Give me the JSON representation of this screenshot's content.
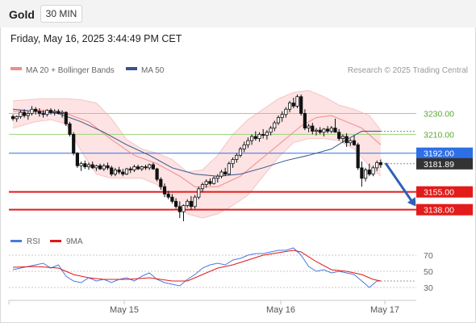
{
  "header": {
    "symbol": "Gold",
    "timeframe": "30 MIN",
    "timestamp": "Friday, May 16, 2025 3:44:49 PM CET"
  },
  "legend": {
    "ma20_label": "MA 20 + Bollinger Bands",
    "ma20_color": "#f28b8b",
    "ma50_label": "MA 50",
    "ma50_color": "#35568f",
    "credit": "Research © 2025 Trading Central"
  },
  "chart_data": [
    {
      "type": "candlestick",
      "title": "",
      "ylim": [
        3120,
        3262
      ],
      "x_ticks": [
        "May 15",
        "May 16",
        "May 17"
      ],
      "candles": [
        [
          3227,
          3229,
          3223,
          3225
        ],
        [
          3225,
          3228,
          3222,
          3227
        ],
        [
          3227,
          3233,
          3225,
          3231
        ],
        [
          3231,
          3234,
          3226,
          3228
        ],
        [
          3228,
          3232,
          3224,
          3230
        ],
        [
          3230,
          3237,
          3228,
          3234
        ],
        [
          3234,
          3236,
          3229,
          3232
        ],
        [
          3232,
          3235,
          3227,
          3230
        ],
        [
          3230,
          3233,
          3226,
          3229
        ],
        [
          3229,
          3234,
          3227,
          3233
        ],
        [
          3233,
          3235,
          3229,
          3231
        ],
        [
          3231,
          3234,
          3228,
          3232
        ],
        [
          3232,
          3234,
          3229,
          3230
        ],
        [
          3230,
          3233,
          3226,
          3231
        ],
        [
          3231,
          3232,
          3218,
          3220
        ],
        [
          3220,
          3222,
          3208,
          3210
        ],
        [
          3210,
          3212,
          3190,
          3192
        ],
        [
          3192,
          3193,
          3178,
          3180
        ],
        [
          3180,
          3184,
          3175,
          3182
        ],
        [
          3182,
          3185,
          3177,
          3179
        ],
        [
          3179,
          3183,
          3176,
          3181
        ],
        [
          3181,
          3184,
          3177,
          3178
        ],
        [
          3178,
          3181,
          3175,
          3180
        ],
        [
          3180,
          3182,
          3176,
          3177
        ],
        [
          3177,
          3182,
          3175,
          3180
        ],
        [
          3180,
          3183,
          3176,
          3178
        ],
        [
          3178,
          3180,
          3170,
          3172
        ],
        [
          3172,
          3178,
          3170,
          3176
        ],
        [
          3176,
          3179,
          3172,
          3174
        ],
        [
          3174,
          3177,
          3170,
          3172
        ],
        [
          3172,
          3178,
          3171,
          3177
        ],
        [
          3177,
          3179,
          3173,
          3176
        ],
        [
          3176,
          3181,
          3174,
          3179
        ],
        [
          3179,
          3181,
          3176,
          3177
        ],
        [
          3177,
          3180,
          3175,
          3179
        ],
        [
          3179,
          3181,
          3176,
          3178
        ],
        [
          3178,
          3182,
          3176,
          3181
        ],
        [
          3181,
          3183,
          3176,
          3177
        ],
        [
          3177,
          3178,
          3165,
          3167
        ],
        [
          3167,
          3169,
          3157,
          3160
        ],
        [
          3160,
          3163,
          3150,
          3153
        ],
        [
          3153,
          3156,
          3148,
          3150
        ],
        [
          3150,
          3153,
          3144,
          3146
        ],
        [
          3146,
          3149,
          3139,
          3141
        ],
        [
          3141,
          3146,
          3130,
          3136
        ],
        [
          3136,
          3143,
          3127,
          3142
        ],
        [
          3142,
          3148,
          3140,
          3146
        ],
        [
          3146,
          3151,
          3138,
          3141
        ],
        [
          3141,
          3152,
          3139,
          3150
        ],
        [
          3150,
          3160,
          3148,
          3158
        ],
        [
          3158,
          3164,
          3155,
          3162
        ],
        [
          3162,
          3167,
          3159,
          3165
        ],
        [
          3165,
          3168,
          3161,
          3163
        ],
        [
          3163,
          3170,
          3162,
          3168
        ],
        [
          3168,
          3172,
          3164,
          3170
        ],
        [
          3170,
          3176,
          3168,
          3174
        ],
        [
          3174,
          3178,
          3170,
          3172
        ],
        [
          3172,
          3184,
          3171,
          3182
        ],
        [
          3182,
          3188,
          3178,
          3186
        ],
        [
          3186,
          3192,
          3183,
          3190
        ],
        [
          3190,
          3198,
          3188,
          3196
        ],
        [
          3196,
          3203,
          3193,
          3200
        ],
        [
          3200,
          3207,
          3197,
          3204
        ],
        [
          3204,
          3210,
          3200,
          3208
        ],
        [
          3208,
          3213,
          3204,
          3206
        ],
        [
          3206,
          3212,
          3203,
          3210
        ],
        [
          3210,
          3215,
          3206,
          3209
        ],
        [
          3209,
          3214,
          3205,
          3212
        ],
        [
          3212,
          3218,
          3209,
          3216
        ],
        [
          3216,
          3223,
          3213,
          3221
        ],
        [
          3221,
          3228,
          3219,
          3226
        ],
        [
          3226,
          3232,
          3222,
          3229
        ],
        [
          3229,
          3236,
          3226,
          3234
        ],
        [
          3234,
          3242,
          3231,
          3240
        ],
        [
          3240,
          3245,
          3235,
          3237
        ],
        [
          3237,
          3248,
          3235,
          3246
        ],
        [
          3246,
          3248,
          3228,
          3230
        ],
        [
          3230,
          3234,
          3214,
          3216
        ],
        [
          3216,
          3220,
          3212,
          3218
        ],
        [
          3218,
          3221,
          3210,
          3213
        ],
        [
          3213,
          3216,
          3209,
          3214
        ],
        [
          3214,
          3217,
          3210,
          3212
        ],
        [
          3212,
          3216,
          3208,
          3215
        ],
        [
          3215,
          3218,
          3211,
          3213
        ],
        [
          3213,
          3218,
          3211,
          3216
        ],
        [
          3216,
          3225,
          3213,
          3212
        ],
        [
          3212,
          3215,
          3204,
          3206
        ],
        [
          3206,
          3210,
          3202,
          3208
        ],
        [
          3208,
          3211,
          3198,
          3202
        ],
        [
          3202,
          3206,
          3199,
          3204
        ],
        [
          3204,
          3209,
          3199,
          3200
        ],
        [
          3200,
          3202,
          3176,
          3178
        ],
        [
          3178,
          3184,
          3160,
          3168
        ],
        [
          3168,
          3178,
          3165,
          3176
        ],
        [
          3176,
          3182,
          3170,
          3172
        ],
        [
          3172,
          3180,
          3170,
          3178
        ],
        [
          3178,
          3185,
          3175,
          3183
        ],
        [
          3183,
          3186,
          3178,
          3181
        ]
      ],
      "ma20": [
        [
          0,
          3232
        ],
        [
          8,
          3233
        ],
        [
          14,
          3230
        ],
        [
          20,
          3222
        ],
        [
          26,
          3205
        ],
        [
          32,
          3190
        ],
        [
          38,
          3182
        ],
        [
          44,
          3170
        ],
        [
          48,
          3160
        ],
        [
          54,
          3160
        ],
        [
          60,
          3170
        ],
        [
          66,
          3188
        ],
        [
          72,
          3206
        ],
        [
          76,
          3218
        ],
        [
          80,
          3226
        ],
        [
          84,
          3228
        ],
        [
          88,
          3222
        ],
        [
          92,
          3216
        ],
        [
          97,
          3200
        ]
      ],
      "bollinger_upper": [
        [
          0,
          3242
        ],
        [
          8,
          3244
        ],
        [
          14,
          3244
        ],
        [
          18,
          3243
        ],
        [
          22,
          3240
        ],
        [
          26,
          3225
        ],
        [
          30,
          3205
        ],
        [
          34,
          3196
        ],
        [
          38,
          3192
        ],
        [
          42,
          3186
        ],
        [
          46,
          3174
        ],
        [
          50,
          3176
        ],
        [
          54,
          3190
        ],
        [
          58,
          3210
        ],
        [
          62,
          3224
        ],
        [
          66,
          3234
        ],
        [
          70,
          3244
        ],
        [
          74,
          3250
        ],
        [
          78,
          3252
        ],
        [
          82,
          3246
        ],
        [
          86,
          3238
        ],
        [
          90,
          3234
        ],
        [
          94,
          3228
        ],
        [
          97,
          3214
        ]
      ],
      "bollinger_lower": [
        [
          0,
          3216
        ],
        [
          6,
          3222
        ],
        [
          10,
          3224
        ],
        [
          14,
          3220
        ],
        [
          18,
          3194
        ],
        [
          22,
          3172
        ],
        [
          26,
          3168
        ],
        [
          30,
          3168
        ],
        [
          34,
          3168
        ],
        [
          38,
          3162
        ],
        [
          42,
          3148
        ],
        [
          46,
          3134
        ],
        [
          50,
          3130
        ],
        [
          54,
          3134
        ],
        [
          58,
          3142
        ],
        [
          62,
          3152
        ],
        [
          66,
          3170
        ],
        [
          70,
          3188
        ],
        [
          74,
          3202
        ],
        [
          78,
          3206
        ],
        [
          82,
          3206
        ],
        [
          86,
          3204
        ],
        [
          90,
          3196
        ],
        [
          94,
          3180
        ],
        [
          97,
          3170
        ]
      ],
      "ma50": [
        [
          0,
          3234
        ],
        [
          6,
          3232
        ],
        [
          12,
          3230
        ],
        [
          18,
          3222
        ],
        [
          24,
          3212
        ],
        [
          30,
          3200
        ],
        [
          36,
          3190
        ],
        [
          42,
          3178
        ],
        [
          48,
          3172
        ],
        [
          54,
          3170
        ],
        [
          60,
          3172
        ],
        [
          66,
          3178
        ],
        [
          72,
          3185
        ],
        [
          78,
          3190
        ],
        [
          84,
          3196
        ],
        [
          88,
          3205
        ],
        [
          92,
          3213
        ],
        [
          97,
          3213
        ]
      ],
      "forecast_arrow": {
        "from": [
          97,
          3181
        ],
        "to": [
          105,
          3138
        ]
      },
      "levels": [
        {
          "value": 3230.0,
          "label": "3230.00",
          "kind": "resistance",
          "color": "#9bd57a"
        },
        {
          "value": 3210.0,
          "label": "3210.00",
          "kind": "resistance",
          "color": "#9bd57a"
        },
        {
          "value": 3192.0,
          "label": "3192.00",
          "kind": "pivot",
          "color": "#2f6fe6"
        },
        {
          "value": 3181.89,
          "label": "3181.89",
          "kind": "last_price",
          "color": "#333333"
        },
        {
          "value": 3155.0,
          "label": "3155.00",
          "kind": "support",
          "color": "#e21b1b"
        },
        {
          "value": 3138.0,
          "label": "3138.00",
          "kind": "support",
          "color": "#e21b1b"
        }
      ]
    },
    {
      "type": "line",
      "title": "",
      "legend": [
        {
          "name": "RSI",
          "color": "#4a78e0"
        },
        {
          "name": "9MA",
          "color": "#e01818"
        }
      ],
      "ylim": [
        20,
        80
      ],
      "y_ticks": [
        70,
        50,
        30
      ],
      "series": [
        {
          "name": "RSI",
          "values": [
            [
              0,
              52
            ],
            [
              4,
              56
            ],
            [
              8,
              60
            ],
            [
              10,
              54
            ],
            [
              12,
              58
            ],
            [
              14,
              44
            ],
            [
              16,
              38
            ],
            [
              18,
              36
            ],
            [
              20,
              42
            ],
            [
              22,
              38
            ],
            [
              24,
              40
            ],
            [
              26,
              36
            ],
            [
              28,
              40
            ],
            [
              30,
              42
            ],
            [
              32,
              38
            ],
            [
              34,
              44
            ],
            [
              36,
              48
            ],
            [
              38,
              40
            ],
            [
              40,
              36
            ],
            [
              42,
              34
            ],
            [
              44,
              32
            ],
            [
              46,
              40
            ],
            [
              48,
              46
            ],
            [
              50,
              54
            ],
            [
              52,
              58
            ],
            [
              54,
              60
            ],
            [
              56,
              58
            ],
            [
              58,
              64
            ],
            [
              60,
              66
            ],
            [
              62,
              70
            ],
            [
              64,
              72
            ],
            [
              66,
              72
            ],
            [
              68,
              74
            ],
            [
              70,
              76
            ],
            [
              72,
              76
            ],
            [
              74,
              79
            ],
            [
              76,
              70
            ],
            [
              78,
              56
            ],
            [
              80,
              50
            ],
            [
              82,
              52
            ],
            [
              84,
              48
            ],
            [
              86,
              50
            ],
            [
              88,
              48
            ],
            [
              90,
              46
            ],
            [
              92,
              38
            ],
            [
              94,
              30
            ],
            [
              96,
              38
            ],
            [
              97,
              38
            ]
          ]
        },
        {
          "name": "9MA",
          "values": [
            [
              0,
              55
            ],
            [
              6,
              56
            ],
            [
              12,
              54
            ],
            [
              16,
              46
            ],
            [
              20,
              42
            ],
            [
              24,
              40
            ],
            [
              30,
              40
            ],
            [
              36,
              42
            ],
            [
              42,
              38
            ],
            [
              46,
              38
            ],
            [
              50,
              46
            ],
            [
              54,
              54
            ],
            [
              58,
              58
            ],
            [
              62,
              64
            ],
            [
              66,
              70
            ],
            [
              70,
              73
            ],
            [
              74,
              76
            ],
            [
              76,
              74
            ],
            [
              80,
              62
            ],
            [
              84,
              52
            ],
            [
              88,
              50
            ],
            [
              92,
              46
            ],
            [
              95,
              40
            ],
            [
              97,
              38
            ]
          ]
        }
      ],
      "reference_lines": [
        70,
        50,
        30
      ]
    }
  ]
}
